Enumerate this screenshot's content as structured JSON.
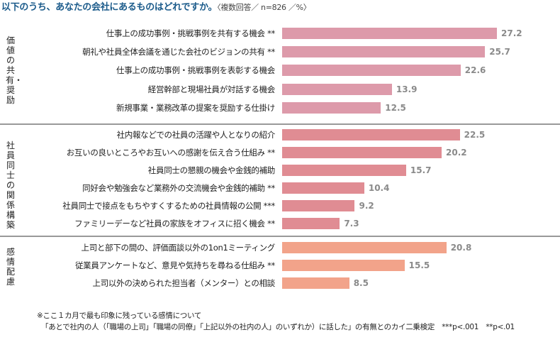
{
  "title": "以下のうち、あなたの会社にあるものはどれですか。",
  "subtitle": "〈複数回答／ n=826 ／%〉",
  "chart_data": {
    "type": "bar",
    "orientation": "horizontal",
    "unit": "%",
    "xlim": [
      0,
      30
    ],
    "groups": [
      {
        "name": "価値の共有・奨励",
        "color": "#dd9aaa",
        "items": [
          {
            "label": "仕事上の成功事例・挑戦事例を共有する機会 **",
            "value": 27.2
          },
          {
            "label": "朝礼や社員全体会議を通じた会社のビジョンの共有 **",
            "value": 25.7
          },
          {
            "label": "仕事上の成功事例・挑戦事例を表彰する機会",
            "value": 22.6
          },
          {
            "label": "経営幹部と現場社員が対話する機会",
            "value": 13.9
          },
          {
            "label": "新規事業・業務改革の提案を奨励する仕掛け",
            "value": 12.5
          }
        ]
      },
      {
        "name": "社員同士の関係構築",
        "color": "#e08c93",
        "items": [
          {
            "label": "社内報などでの社員の活躍や人となりの紹介",
            "value": 22.5
          },
          {
            "label": "お互いの良いところやお互いへの感謝を伝え合う仕組み **",
            "value": 20.2
          },
          {
            "label": "社員同士の懇親の機会や金銭的補助",
            "value": 15.7
          },
          {
            "label": "同好会や勉強会など業務外の交流機会や金銭的補助 **",
            "value": 10.4
          },
          {
            "label": "社員同士で接点をもちやすくするための社員情報の公開 ***",
            "value": 9.2
          },
          {
            "label": "ファミリーデーなど社員の家族をオフィスに招く機会 **",
            "value": 7.3
          }
        ]
      },
      {
        "name": "感情配慮",
        "color": "#f2a38a",
        "items": [
          {
            "label": "上司と部下の間の、評価面談以外の1on1ミーティング",
            "value": 20.8
          },
          {
            "label": "従業員アンケートなど、意見や気持ちを尋ねる仕組み **",
            "value": 15.5
          },
          {
            "label": "上司以外の決められた担当者（メンター）との相談",
            "value": 8.5
          }
        ]
      }
    ]
  },
  "notes": [
    "※ここ１カ月で最も印象に残っている感情について",
    "「あとで社内の人（「職場の上司」「職場の同僚」「上記以外の社内の人」のいずれか）に話した」の有無とのカイ二乗検定　***p<.001　**p<.01"
  ]
}
